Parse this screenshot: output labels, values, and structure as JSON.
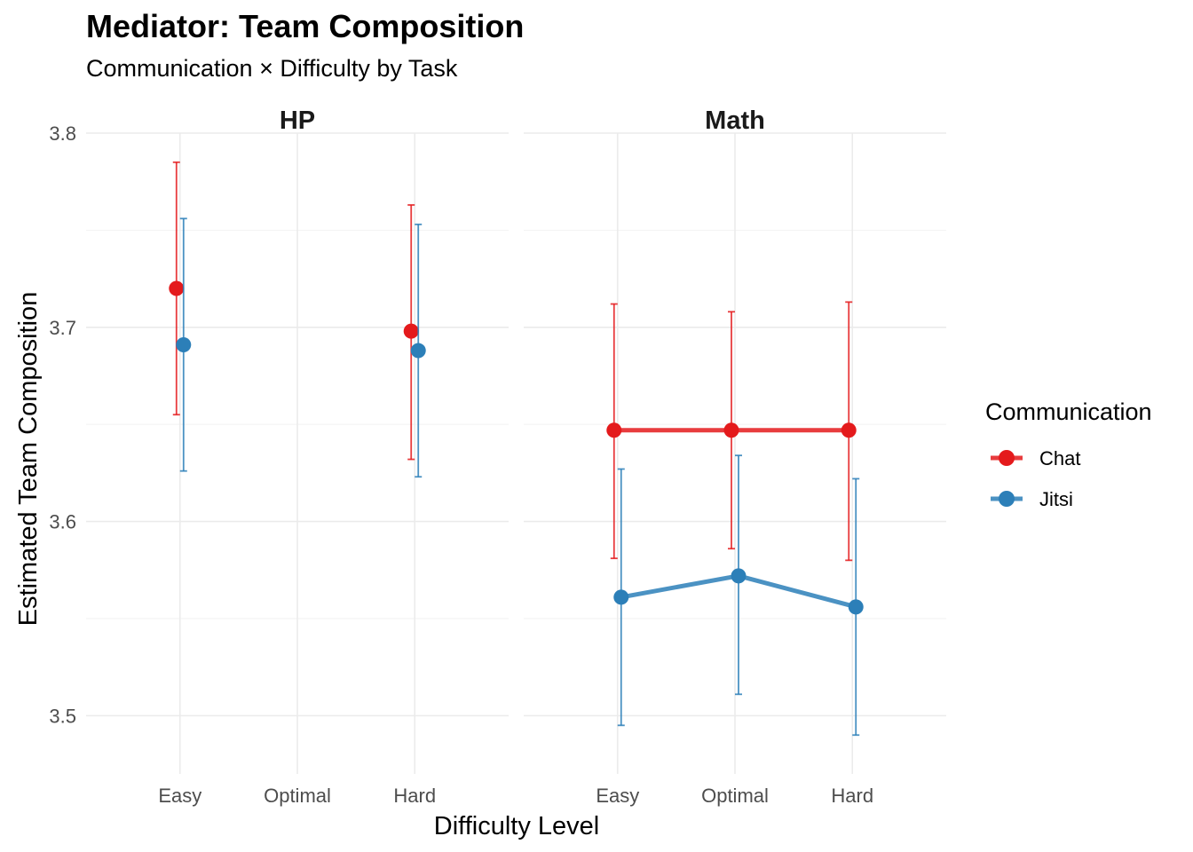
{
  "chart_data": {
    "type": "line",
    "title": "Mediator: Team Composition",
    "subtitle": "Communication × Difficulty by Task",
    "xlabel": "Difficulty Level",
    "ylabel": "Estimated Team Composition",
    "categories": [
      "Easy",
      "Optimal",
      "Hard"
    ],
    "ylim": [
      3.47,
      3.8
    ],
    "yticks": [
      3.5,
      3.6,
      3.7,
      3.8
    ],
    "yticks_labels": [
      "3.5",
      "3.6",
      "3.7",
      "3.8"
    ],
    "legend": {
      "title": "Communication",
      "position": "right",
      "entries": [
        {
          "name": "Chat",
          "color": "#e41a1c"
        },
        {
          "name": "Jitsi",
          "color": "#2c7fb8"
        }
      ]
    },
    "panels": [
      {
        "name": "HP",
        "series": [
          {
            "name": "Chat",
            "color": "#e41a1c",
            "points": [
              {
                "x": "Easy",
                "y": 3.72,
                "lower": 3.655,
                "upper": 3.785
              },
              {
                "x": "Hard",
                "y": 3.698,
                "lower": 3.632,
                "upper": 3.763
              }
            ]
          },
          {
            "name": "Jitsi",
            "color": "#2c7fb8",
            "points": [
              {
                "x": "Easy",
                "y": 3.691,
                "lower": 3.626,
                "upper": 3.756
              },
              {
                "x": "Hard",
                "y": 3.688,
                "lower": 3.623,
                "upper": 3.753
              }
            ]
          }
        ]
      },
      {
        "name": "Math",
        "series": [
          {
            "name": "Chat",
            "color": "#e41a1c",
            "points": [
              {
                "x": "Easy",
                "y": 3.647,
                "lower": 3.581,
                "upper": 3.712
              },
              {
                "x": "Optimal",
                "y": 3.647,
                "lower": 3.586,
                "upper": 3.708
              },
              {
                "x": "Hard",
                "y": 3.647,
                "lower": 3.58,
                "upper": 3.713
              }
            ]
          },
          {
            "name": "Jitsi",
            "color": "#2c7fb8",
            "points": [
              {
                "x": "Easy",
                "y": 3.561,
                "lower": 3.495,
                "upper": 3.627
              },
              {
                "x": "Optimal",
                "y": 3.572,
                "lower": 3.511,
                "upper": 3.634
              },
              {
                "x": "Hard",
                "y": 3.556,
                "lower": 3.49,
                "upper": 3.622
              }
            ]
          }
        ]
      }
    ]
  }
}
